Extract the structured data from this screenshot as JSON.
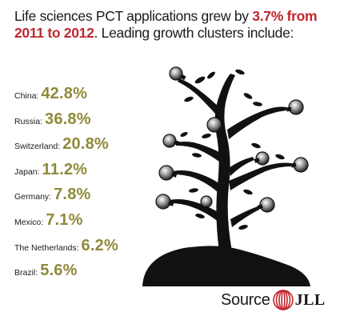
{
  "headline": {
    "part1": "Life sciences PCT applications grew by ",
    "highlight1": "3.7% from 2011 to 2012",
    "part2": ".  Leading growth clusters include:"
  },
  "stats": [
    {
      "label": "China:",
      "value": "42.8%"
    },
    {
      "label": "Russia:",
      "value": "36.8%"
    },
    {
      "label": "Switzerland:",
      "value": "20.8%"
    },
    {
      "label": "Japan:",
      "value": "11.2%"
    },
    {
      "label": "Germany:",
      "value": "7.8%"
    },
    {
      "label": "Mexico:",
      "value": "7.1%"
    },
    {
      "label": "The Netherlands:",
      "value": "6.2%"
    },
    {
      "label": "Brazil:",
      "value": "5.6%"
    }
  ],
  "source": {
    "label": "Source",
    "logo_text": "JLL"
  },
  "colors": {
    "highlight": "#c0262d",
    "stat_value": "#8f8a39",
    "tree": "#111111",
    "logo": "#c0262d"
  },
  "icons": {
    "tree": "tree-with-lightbulbs-illustration",
    "logo": "jll-logo"
  }
}
